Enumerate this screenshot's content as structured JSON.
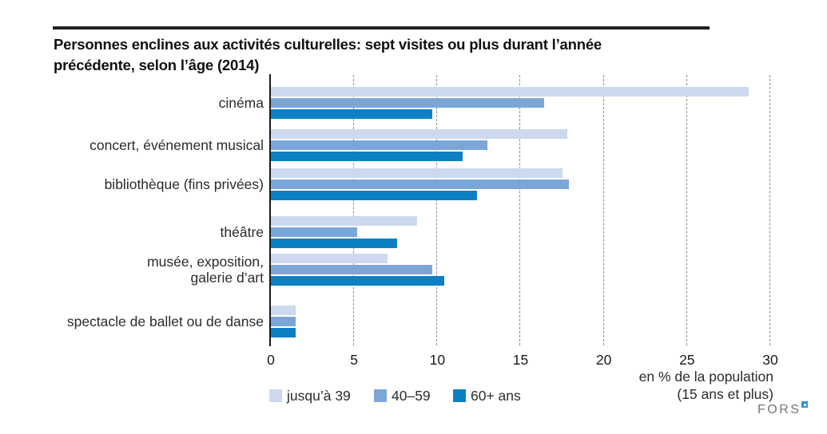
{
  "page": {
    "title_line1": "Personnes enclines aux activités culturelles: sept visites ou plus durant l’année",
    "title_line2": "précédente, selon l’âge (2014)",
    "source_logo": "FORS"
  },
  "chart_data": {
    "type": "bar",
    "orientation": "horizontal",
    "title": "Personnes enclines aux activités culturelles: sept visites ou plus durant l’année précédente, selon l’âge (2014)",
    "categories": [
      "cinéma",
      "concert, événement musical",
      "bibliothèque (fins privées)",
      "théâtre",
      "musée, exposition,\ngalerie d’art",
      "spectacle de ballet ou de danse"
    ],
    "series": [
      {
        "name": "jusqu’à 39",
        "color": "#cdd9ee",
        "values": [
          28.7,
          17.8,
          17.5,
          8.8,
          7.0,
          1.5
        ]
      },
      {
        "name": "40–59",
        "color": "#7da6d8",
        "values": [
          16.4,
          13.0,
          17.9,
          5.2,
          9.7,
          1.5
        ]
      },
      {
        "name": "60+ ans",
        "color": "#0d7fc3",
        "values": [
          9.7,
          11.5,
          12.4,
          7.6,
          10.4,
          1.5
        ]
      }
    ],
    "x_axis": {
      "range": [
        0,
        30
      ],
      "ticks": [
        0,
        5,
        10,
        15,
        20,
        25,
        30
      ],
      "label_line1": "en % de la population",
      "label_line2": "(15 ans et plus)"
    },
    "grid": "vertical-dashed",
    "legend_position": "bottom"
  },
  "colors": {
    "series_light": "#cdd9ee",
    "series_medium": "#7da6d8",
    "series_dark": "#0d7fc3",
    "gridline": "#8c8c8c",
    "axis": "#1a1a1a",
    "title_rule": "#231f20",
    "fors_gray": "#75767b",
    "fors_blue": "#2d96d2"
  }
}
